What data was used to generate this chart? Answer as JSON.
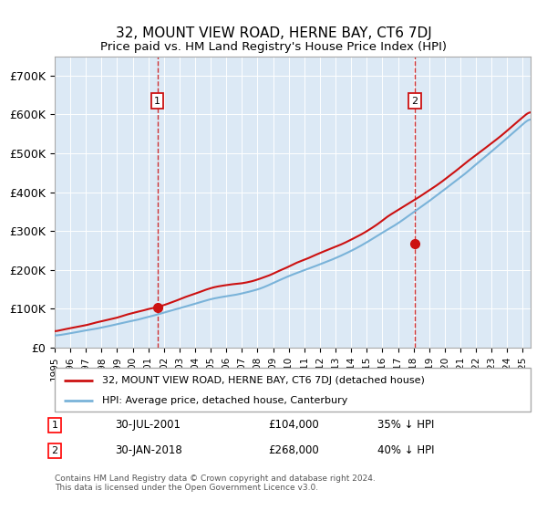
{
  "title": "32, MOUNT VIEW ROAD, HERNE BAY, CT6 7DJ",
  "subtitle": "Price paid vs. HM Land Registry's House Price Index (HPI)",
  "background_color": "#dce9f5",
  "plot_bg_color": "#dce9f5",
  "ylim": [
    0,
    750000
  ],
  "yticks": [
    0,
    100000,
    200000,
    300000,
    400000,
    500000,
    600000,
    700000
  ],
  "ytick_labels": [
    "£0",
    "£100K",
    "£200K",
    "£300K",
    "£400K",
    "£500K",
    "£600K",
    "£700K"
  ],
  "hpi_color": "#7ab3d9",
  "price_color": "#cc1111",
  "vline_color": "#cc1111",
  "marker1_value": 104000,
  "marker1_year": 2001.583,
  "marker1_label": "1",
  "marker1_date_str": "30-JUL-2001",
  "marker1_price_str": "£104,000",
  "marker1_note": "35% ↓ HPI",
  "marker2_value": 268000,
  "marker2_year": 2018.083,
  "marker2_label": "2",
  "marker2_date_str": "30-JAN-2018",
  "marker2_price_str": "£268,000",
  "marker2_note": "40% ↓ HPI",
  "legend_label_price": "32, MOUNT VIEW ROAD, HERNE BAY, CT6 7DJ (detached house)",
  "legend_label_hpi": "HPI: Average price, detached house, Canterbury",
  "footer": "Contains HM Land Registry data © Crown copyright and database right 2024.\nThis data is licensed under the Open Government Licence v3.0."
}
